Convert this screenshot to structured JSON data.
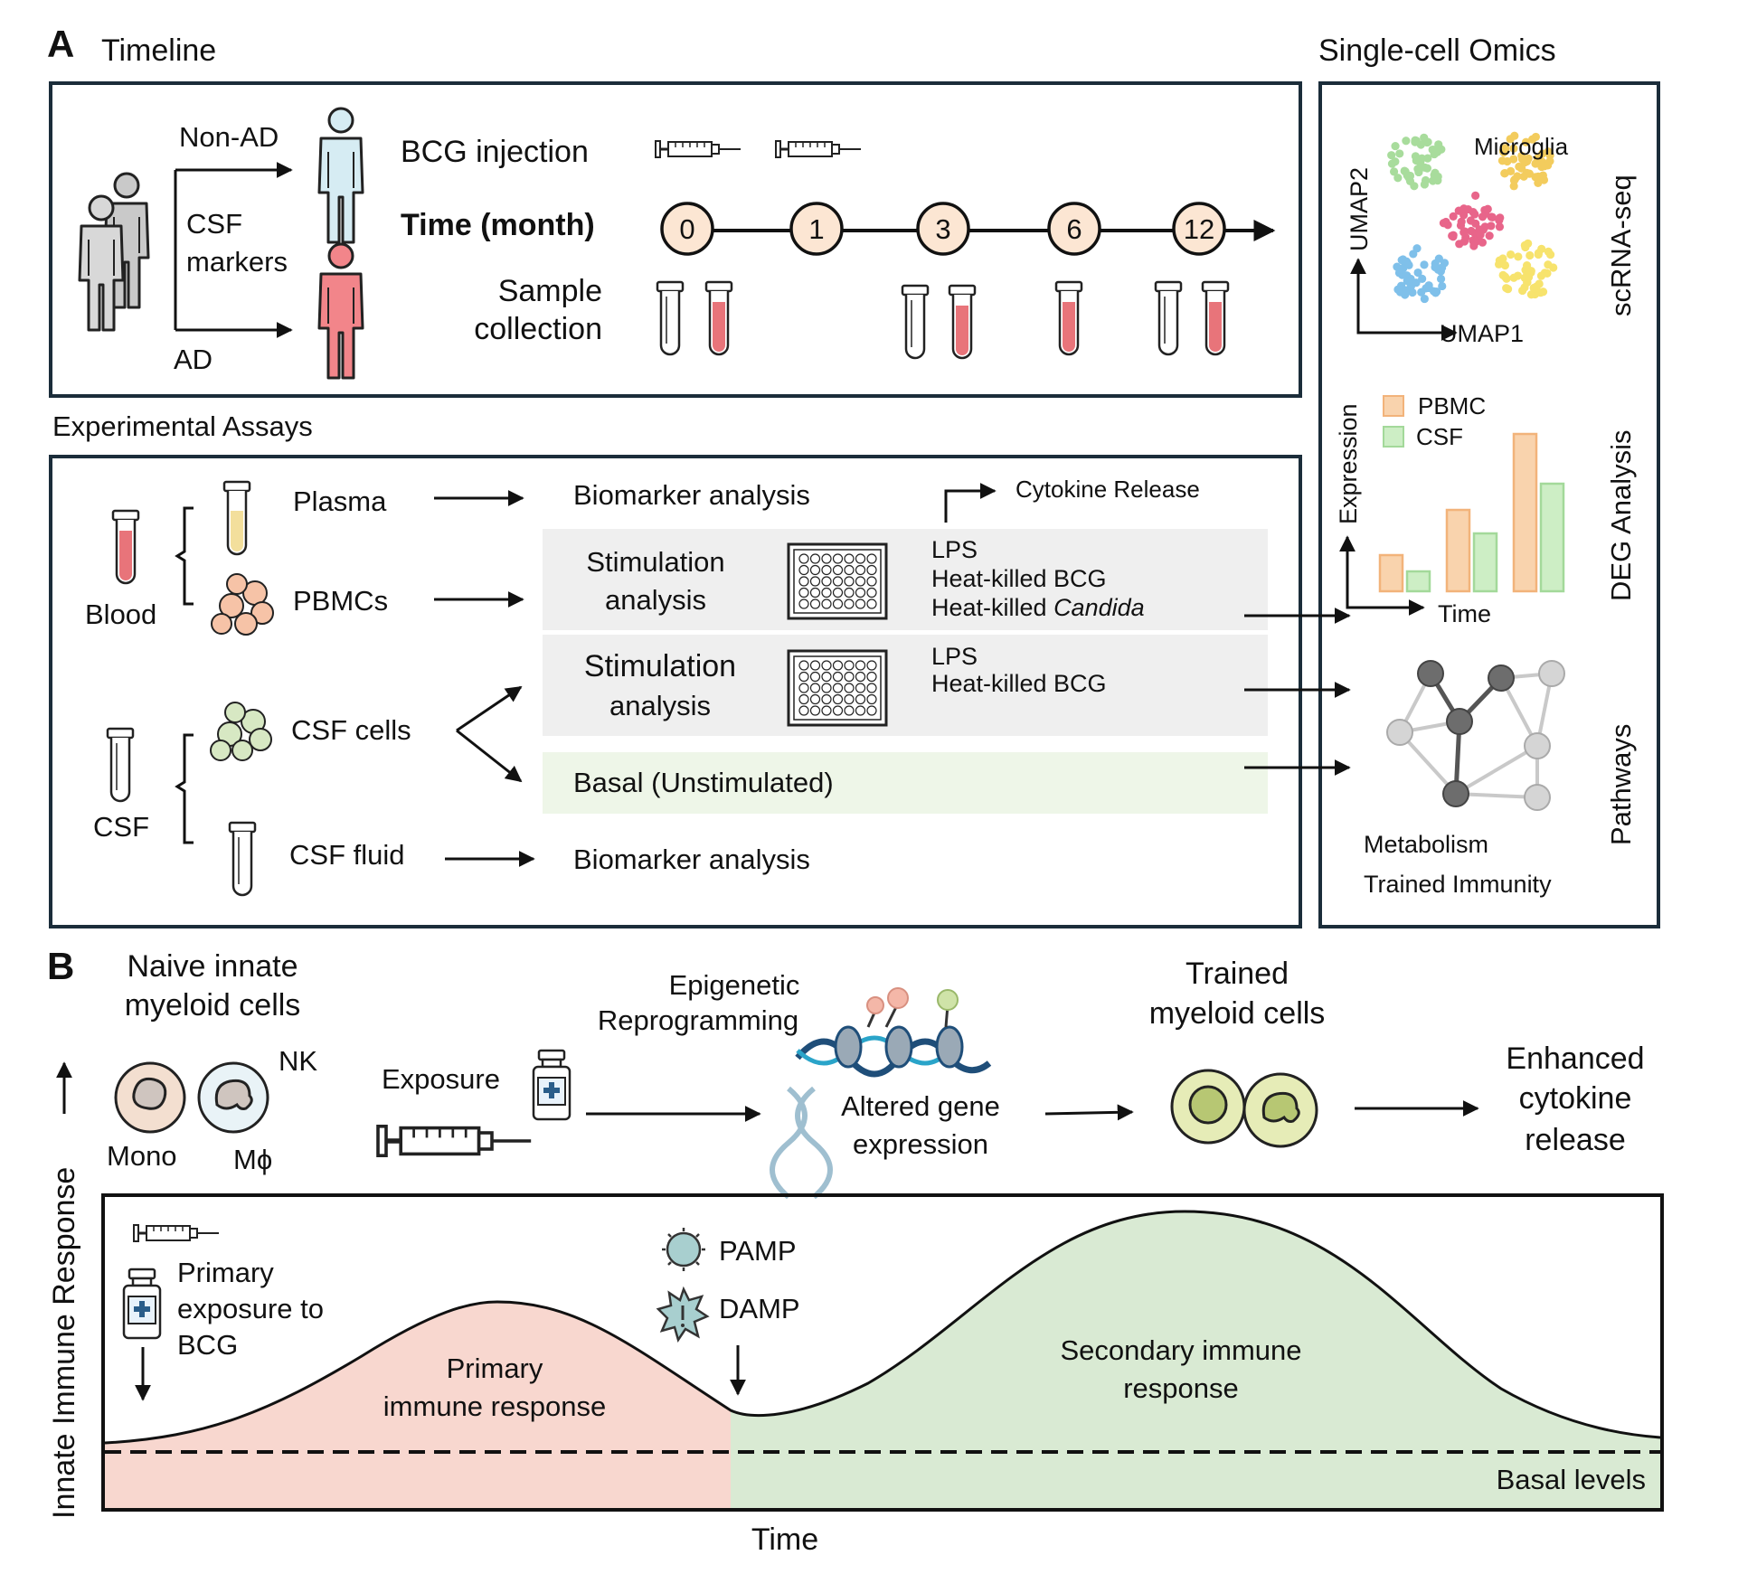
{
  "panel_a": {
    "letter": "A",
    "timeline_title": "Timeline",
    "omics_title": "Single-cell Omics",
    "cohort": {
      "non_ad": "Non-AD",
      "csf": "CSF",
      "markers": "markers",
      "ad": "AD"
    },
    "bcg_injection": "BCG injection",
    "time_month_label": "Time (month)",
    "time_points": [
      "0",
      "1",
      "3",
      "6",
      "12"
    ],
    "sample_collection": [
      "Sample",
      "collection"
    ],
    "assays_title": "Experimental Assays",
    "blood": "Blood",
    "plasma": "Plasma",
    "pbmcs": "PBMCs",
    "csf": "CSF",
    "csf_cells": "CSF cells",
    "csf_fluid": "CSF fluid",
    "biomarker_analysis": "Biomarker analysis",
    "cytokine_release": "Cytokine Release",
    "stimulation": "Stimulation",
    "analysis": "analysis",
    "stim1_list": [
      "LPS",
      "Heat-killed BCG",
      "Heat-killed "
    ],
    "candida": "Candida",
    "stim2_list": [
      "LPS",
      "Heat-killed BCG"
    ],
    "basal": "Basal (Unstimulated)",
    "umap1": "UMAP1",
    "umap2": "UMAP2",
    "microglia": "Microglia",
    "scrna": "scRNA-seq",
    "expression": "Expression",
    "legend_pbmc": "PBMC",
    "legend_csf": "CSF",
    "time": "Time",
    "deg": "DEG Analysis",
    "pathways": "Pathways",
    "metabolism": "Metabolism",
    "trained_immunity": "Trained Immunity",
    "colors": {
      "pbmc": "#f9d3ad",
      "csf": "#cdeec5",
      "frame": "#1b2d3a"
    }
  },
  "panel_b": {
    "letter": "B",
    "naive": [
      "Naive innate",
      "myeloid cells"
    ],
    "nk": "NK",
    "mono": "Mono",
    "mphi": "Mϕ",
    "exposure": "Exposure",
    "epigenetic": [
      "Epigenetic",
      "Reprogramming"
    ],
    "altered": [
      "Altered gene",
      "expression"
    ],
    "trained": [
      "Trained",
      "myeloid cells"
    ],
    "enhanced": [
      "Enhanced",
      "cytokine",
      "release"
    ],
    "yaxis": "Innate Immune Response",
    "xaxis": "Time",
    "primary_exposure": [
      "Primary",
      "exposure to",
      "BCG"
    ],
    "pamp": "PAMP",
    "damp": "DAMP",
    "primary_response": [
      "Primary",
      "immune response"
    ],
    "secondary_response": [
      "Secondary immune",
      "response"
    ],
    "basal_levels": "Basal levels",
    "colors": {
      "primary": "#f8d7cf",
      "secondary": "#d9ead3"
    }
  }
}
